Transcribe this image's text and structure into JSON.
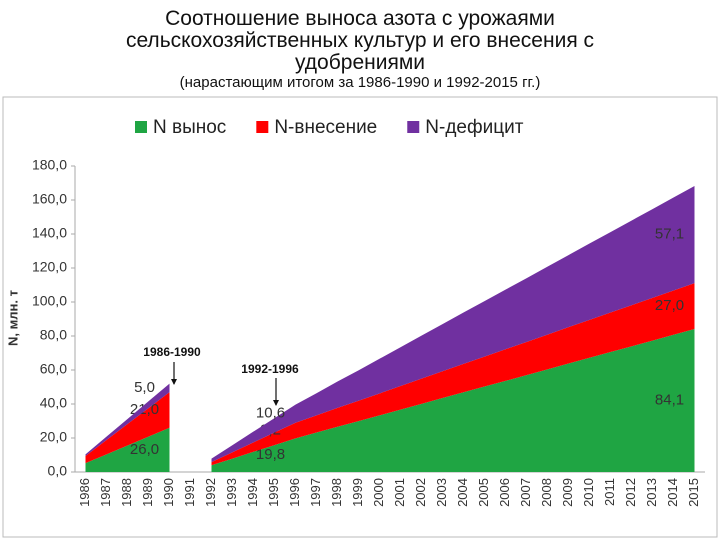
{
  "chart_data": {
    "type": "stacked_area",
    "title": "Соотношение выноса азота с урожаями сельскохозяйственных культур и его внесения с удобрениями",
    "subtitle": "(нарастающим итогом за 1986-1990 и 1992-2015 гг.)",
    "y_label": "N, млн. т",
    "categories": [
      "1986",
      "1987",
      "1988",
      "1989",
      "1990",
      "1991",
      "1992",
      "1993",
      "1994",
      "1995",
      "1996",
      "1997",
      "1998",
      "1999",
      "2000",
      "2001",
      "2002",
      "2003",
      "2004",
      "2005",
      "2006",
      "2007",
      "2008",
      "2009",
      "2010",
      "2011",
      "2012",
      "2013",
      "2014",
      "2015"
    ],
    "series": [
      {
        "name": "N вынос",
        "color": "#1fa543",
        "values": [
          5.2,
          10.4,
          15.6,
          20.8,
          26.0,
          null,
          4.0,
          7.9,
          11.9,
          15.8,
          19.8,
          23.2,
          26.6,
          29.9,
          33.3,
          36.7,
          40.1,
          43.5,
          46.9,
          50.3,
          53.6,
          57.0,
          60.4,
          63.8,
          67.2,
          70.6,
          73.9,
          77.3,
          80.7,
          84.1
        ],
        "value_labels": [
          null,
          null,
          null,
          null,
          "26,0",
          null,
          null,
          null,
          null,
          null,
          "19,8",
          null,
          null,
          null,
          null,
          null,
          null,
          null,
          null,
          null,
          null,
          null,
          null,
          null,
          null,
          null,
          null,
          null,
          null,
          "84,1"
        ]
      },
      {
        "name": "N-внесение",
        "color": "#ff0000",
        "values": [
          4.2,
          8.4,
          12.6,
          16.8,
          21.0,
          null,
          1.8,
          3.7,
          5.5,
          7.4,
          9.2,
          10.1,
          11.1,
          12.0,
          12.9,
          13.9,
          14.8,
          15.8,
          16.7,
          17.6,
          18.6,
          19.5,
          20.4,
          21.4,
          22.3,
          23.2,
          24.2,
          25.1,
          26.1,
          27.0
        ],
        "value_labels": [
          null,
          null,
          null,
          null,
          "21,0",
          null,
          null,
          null,
          null,
          null,
          "9,2",
          null,
          null,
          null,
          null,
          null,
          null,
          null,
          null,
          null,
          null,
          null,
          null,
          null,
          null,
          null,
          null,
          null,
          null,
          "27,0"
        ]
      },
      {
        "name": "N-дефицит",
        "color": "#7030a0",
        "values": [
          1.0,
          2.0,
          3.0,
          4.0,
          5.0,
          null,
          2.1,
          4.2,
          6.4,
          8.5,
          10.6,
          13.0,
          15.5,
          17.9,
          20.4,
          22.8,
          25.3,
          27.7,
          30.2,
          32.6,
          35.1,
          37.5,
          40.0,
          42.4,
          44.9,
          47.3,
          49.8,
          52.2,
          54.7,
          57.1
        ],
        "value_labels": [
          null,
          null,
          null,
          null,
          "5,0",
          null,
          null,
          null,
          null,
          null,
          "10,6",
          null,
          null,
          null,
          null,
          null,
          null,
          null,
          null,
          null,
          null,
          null,
          null,
          null,
          null,
          null,
          null,
          null,
          null,
          "57,1"
        ]
      }
    ],
    "annotations": [
      "1986-1990",
      "1992-1996"
    ],
    "ylim": [
      0,
      180
    ],
    "yticks": [
      {
        "value": 0,
        "label": "0,0"
      },
      {
        "value": 20,
        "label": "20,0"
      },
      {
        "value": 40,
        "label": "40,0"
      },
      {
        "value": 60,
        "label": "60,0"
      },
      {
        "value": 80,
        "label": "80,0"
      },
      {
        "value": 100,
        "label": "100,0"
      },
      {
        "value": 120,
        "label": "120,0"
      },
      {
        "value": 140,
        "label": "140,0"
      },
      {
        "value": 160,
        "label": "160,0"
      },
      {
        "value": 180,
        "label": "180,0"
      }
    ],
    "grid": false,
    "legend": "top"
  }
}
